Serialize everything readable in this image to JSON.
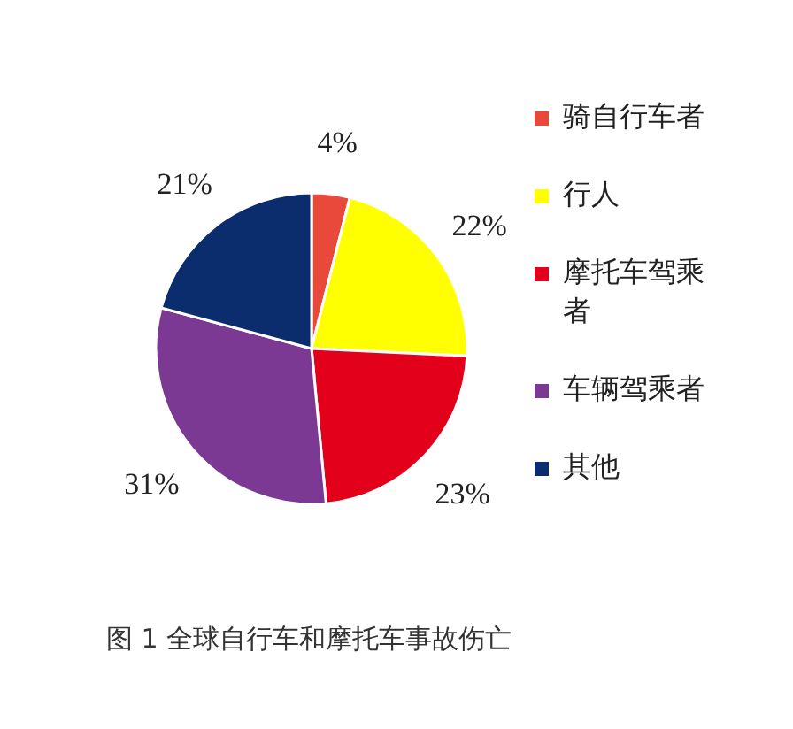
{
  "chart_data": {
    "type": "pie",
    "categories": [
      "骑自行车者",
      "行人",
      "摩托车驾乘者",
      "车辆驾乘者",
      "其他"
    ],
    "values": [
      4,
      22,
      23,
      31,
      21
    ],
    "value_labels": [
      "4%",
      "22%",
      "23%",
      "31%",
      "21%"
    ],
    "colors": [
      "#e8493b",
      "#ffff00",
      "#e2001a",
      "#7b3994",
      "#0b2d6e"
    ],
    "legend": "right",
    "annotations": [
      "图 1 全球自行车和摩托车事故伤亡"
    ]
  }
}
